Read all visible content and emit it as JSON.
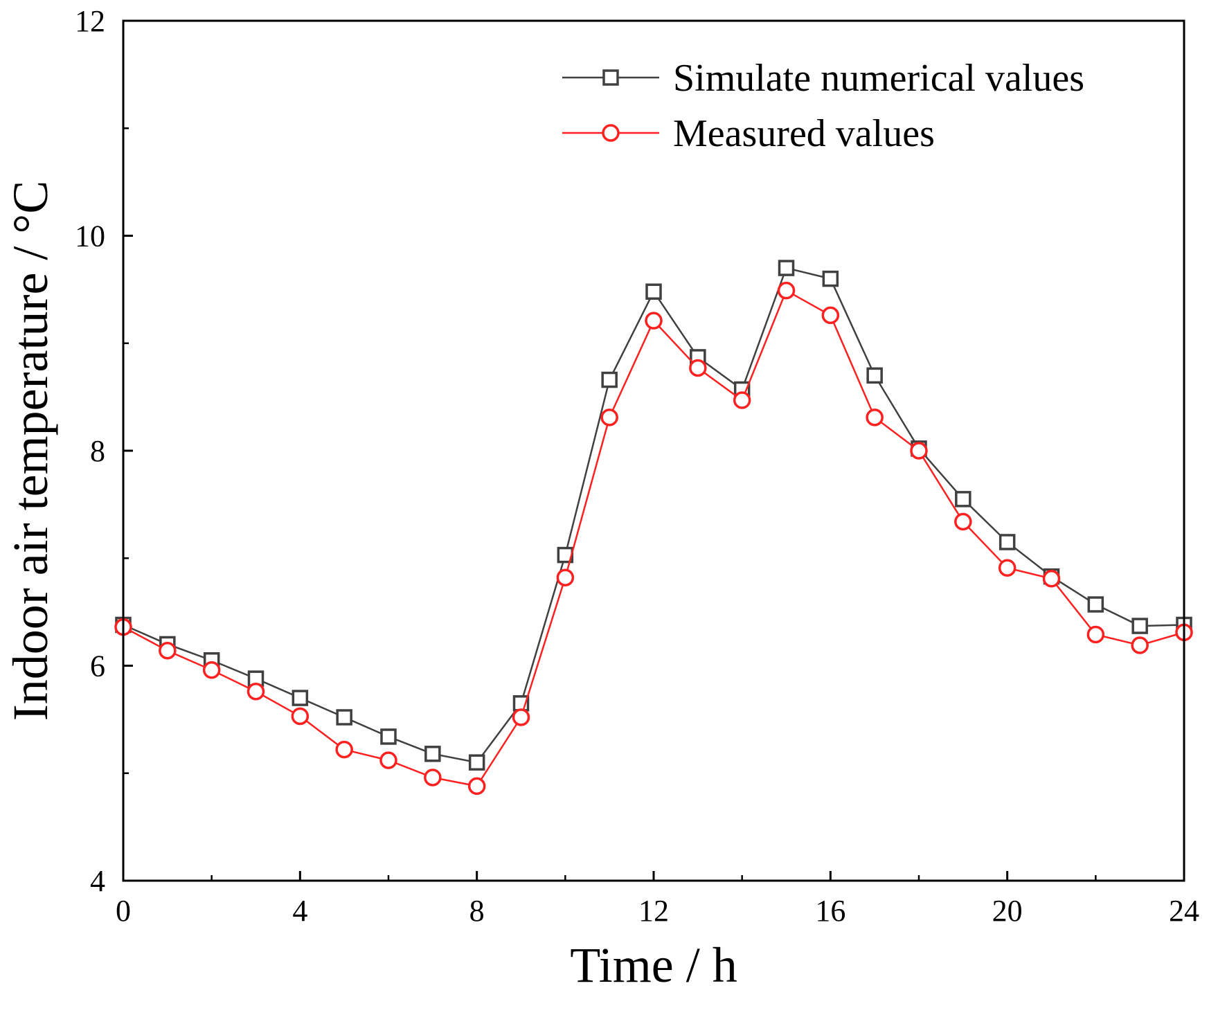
{
  "chart_data": {
    "type": "line",
    "title": "",
    "xlabel": "Time / h",
    "ylabel": "Indoor air temperature / °C",
    "xlim": [
      0,
      24
    ],
    "ylim": [
      4,
      12
    ],
    "xticks": [
      0,
      4,
      8,
      12,
      16,
      20,
      24
    ],
    "yticks": [
      4,
      6,
      8,
      10,
      12
    ],
    "xtick_labels": [
      "0",
      "4",
      "8",
      "12",
      "16",
      "20",
      "24"
    ],
    "ytick_labels": [
      "4",
      "6",
      "8",
      "10",
      "12"
    ],
    "grid": false,
    "legend_position": "top-right",
    "x": [
      0,
      1,
      2,
      3,
      4,
      5,
      6,
      7,
      8,
      9,
      10,
      11,
      12,
      13,
      14,
      15,
      16,
      17,
      18,
      19,
      20,
      21,
      22,
      23,
      24
    ],
    "series": [
      {
        "name": "Simulate numerical values",
        "color": "#404040",
        "marker": "square",
        "values": [
          6.38,
          6.2,
          6.05,
          5.88,
          5.7,
          5.52,
          5.34,
          5.18,
          5.1,
          5.65,
          7.03,
          8.66,
          9.48,
          8.87,
          8.57,
          9.7,
          9.6,
          8.7,
          8.02,
          7.55,
          7.15,
          6.83,
          6.57,
          6.37,
          6.38
        ]
      },
      {
        "name": "Measured values",
        "color": "#ff2020",
        "marker": "circle",
        "values": [
          6.36,
          6.14,
          5.96,
          5.76,
          5.53,
          5.22,
          5.12,
          4.96,
          4.88,
          5.52,
          6.82,
          8.31,
          9.21,
          8.77,
          8.47,
          9.49,
          9.26,
          8.31,
          8.0,
          7.34,
          6.91,
          6.81,
          6.29,
          6.19,
          6.31
        ]
      }
    ]
  }
}
